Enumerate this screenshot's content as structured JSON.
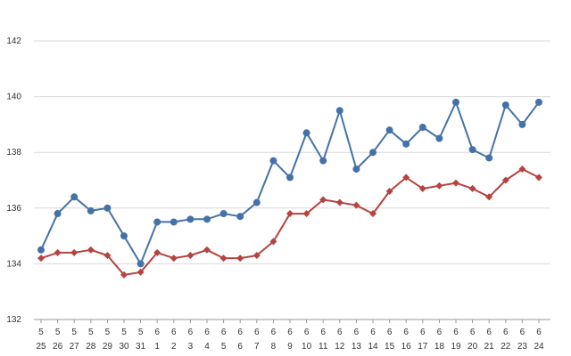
{
  "chart_data": {
    "type": "line",
    "title": "",
    "xlabel": "",
    "ylabel": "",
    "ylim": [
      132,
      142
    ],
    "yticks": [
      132,
      134,
      136,
      138,
      140,
      142
    ],
    "grid": true,
    "legend": "none",
    "categories": [
      {
        "month": "5",
        "day": "25"
      },
      {
        "month": "5",
        "day": "26"
      },
      {
        "month": "5",
        "day": "27"
      },
      {
        "month": "5",
        "day": "28"
      },
      {
        "month": "5",
        "day": "29"
      },
      {
        "month": "5",
        "day": "30"
      },
      {
        "month": "5",
        "day": "31"
      },
      {
        "month": "6",
        "day": "1"
      },
      {
        "month": "6",
        "day": "2"
      },
      {
        "month": "6",
        "day": "3"
      },
      {
        "month": "6",
        "day": "4"
      },
      {
        "month": "6",
        "day": "5"
      },
      {
        "month": "6",
        "day": "6"
      },
      {
        "month": "6",
        "day": "7"
      },
      {
        "month": "6",
        "day": "8"
      },
      {
        "month": "6",
        "day": "9"
      },
      {
        "month": "6",
        "day": "10"
      },
      {
        "month": "6",
        "day": "11"
      },
      {
        "month": "6",
        "day": "12"
      },
      {
        "month": "6",
        "day": "13"
      },
      {
        "month": "6",
        "day": "14"
      },
      {
        "month": "6",
        "day": "15"
      },
      {
        "month": "6",
        "day": "16"
      },
      {
        "month": "6",
        "day": "17"
      },
      {
        "month": "6",
        "day": "18"
      },
      {
        "month": "6",
        "day": "19"
      },
      {
        "month": "6",
        "day": "20"
      },
      {
        "month": "6",
        "day": "21"
      },
      {
        "month": "6",
        "day": "22"
      },
      {
        "month": "6",
        "day": "23"
      },
      {
        "month": "6",
        "day": "24"
      }
    ],
    "series": [
      {
        "color": "#4472a8",
        "marker": "circle",
        "values": [
          134.5,
          135.8,
          136.4,
          135.9,
          136.0,
          135.0,
          134.0,
          135.5,
          135.5,
          135.6,
          135.6,
          135.8,
          135.7,
          136.2,
          137.7,
          137.1,
          138.7,
          137.7,
          139.5,
          137.4,
          138.0,
          138.8,
          138.3,
          138.9,
          138.5,
          139.8,
          138.1,
          137.8,
          139.7,
          139.0,
          139.8
        ]
      },
      {
        "color": "#b5433f",
        "marker": "diamond",
        "values": [
          134.2,
          134.4,
          134.4,
          134.5,
          134.3,
          133.6,
          133.7,
          134.4,
          134.2,
          134.3,
          134.5,
          134.2,
          134.2,
          134.3,
          134.8,
          135.8,
          135.8,
          136.3,
          136.2,
          136.1,
          135.8,
          136.6,
          137.1,
          136.7,
          136.8,
          136.9,
          136.7,
          136.4,
          137.0,
          137.4,
          137.1
        ]
      }
    ]
  }
}
